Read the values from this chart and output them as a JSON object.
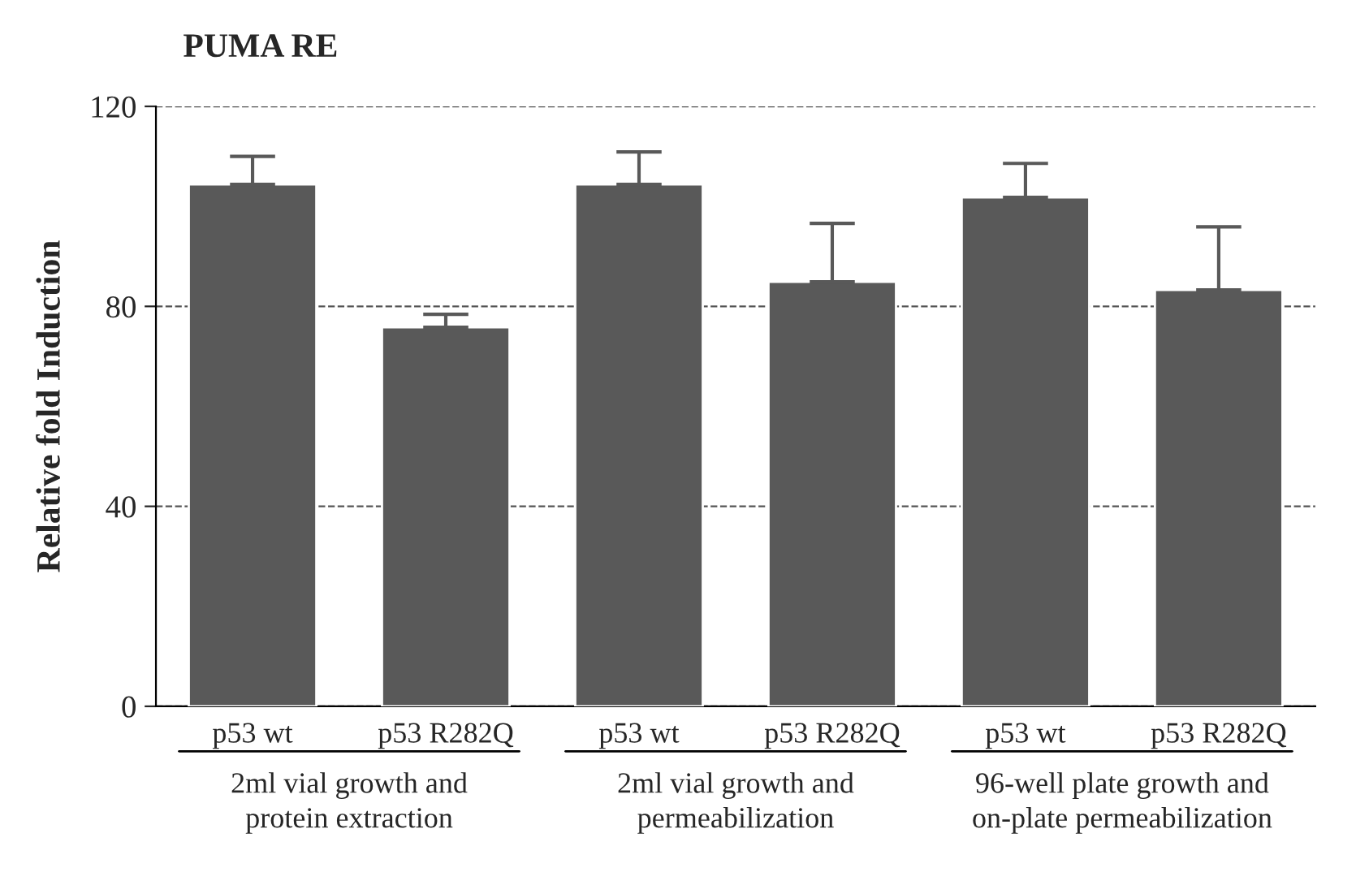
{
  "chart_data": {
    "type": "bar",
    "title": "PUMA RE",
    "ylabel": "Relative fold Induction",
    "categories": [
      "p53 wt",
      "p53 R282Q",
      "p53 wt",
      "p53 R282Q",
      "p53 wt",
      "p53 R282Q"
    ],
    "values": [
      104.4,
      75.8,
      104.4,
      84.9,
      101.8,
      83.3
    ],
    "errors": [
      [
        104.4,
        110
      ],
      [
        75.8,
        78.4
      ],
      [
        104.4,
        110.9
      ],
      [
        84.9,
        96.6
      ],
      [
        101.8,
        108.6
      ],
      [
        83.3,
        95.9
      ]
    ],
    "color": "#595959",
    "ylim": [
      0,
      120
    ],
    "yticks": [
      0,
      40,
      80,
      120
    ],
    "grid": "y",
    "line_style": "dashed",
    "annotations": [
      "2ml vial growth and\nprotein extraction",
      "2ml vial growth and\npermeabilization",
      "96-well plate growth and\non-plate permeabilization"
    ]
  }
}
